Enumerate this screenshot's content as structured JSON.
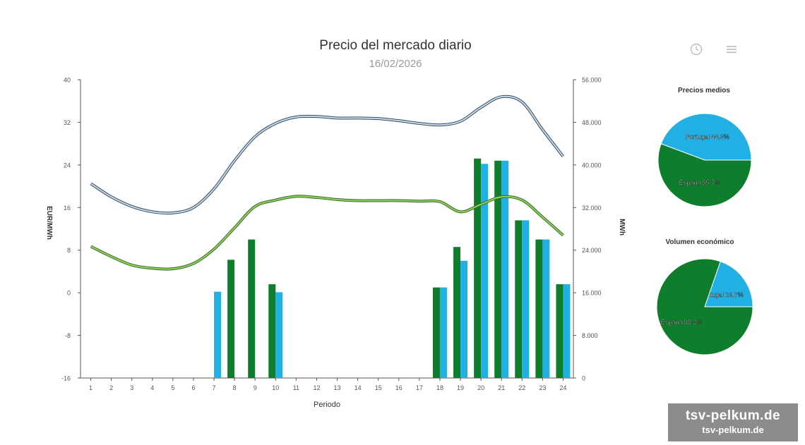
{
  "header": {
    "title": "Precio del mercado diario",
    "subtitle": "16/02/2026"
  },
  "toolbar": {
    "reset_icon": "clock-reset-icon",
    "menu_icon": "hamburger-menu-icon"
  },
  "colors": {
    "portugal": "#21b0e3",
    "espana": "#0e7d2c",
    "portugal_price_line": "#c4dcea",
    "espana_price_line": "#8fd15c",
    "axis": "#555555",
    "line_outline": "#3a4a60",
    "green_outline": "#3a6a2a"
  },
  "chart_data": [
    {
      "type": "bar+line",
      "title": "Precio del mercado diario",
      "subtitle": "16/02/2026",
      "xlabel": "Periodo",
      "ylabel_left": "EUR/MWh",
      "ylabel_right": "MWh",
      "x": [
        1,
        2,
        3,
        4,
        5,
        6,
        7,
        8,
        9,
        10,
        11,
        12,
        13,
        14,
        15,
        16,
        17,
        18,
        19,
        20,
        21,
        22,
        23,
        24
      ],
      "ylim_left": [
        -16,
        40
      ],
      "yticks_left": [
        "40",
        "32",
        "24",
        "16",
        "8",
        "0",
        "-8",
        "-16"
      ],
      "ylim_right": [
        0,
        56000
      ],
      "yticks_right": [
        "56.000",
        "48.000",
        "40.000",
        "32.000",
        "24.000",
        "16.000",
        "8.000",
        "0"
      ],
      "grid": false,
      "line_series": [
        {
          "values": [
            20.5,
            18,
            16.2,
            15.2,
            15,
            16,
            19.5,
            24.8,
            29.3,
            31.8,
            33,
            33.1,
            32.8,
            32.8,
            32.7,
            32.3,
            31.8,
            31.5,
            32.2,
            34.8,
            36.8,
            35.8,
            30.6,
            25.6
          ]
        },
        {
          "values": [
            8.7,
            6.8,
            5.2,
            4.6,
            4.5,
            5.5,
            8.2,
            12.2,
            16.2,
            17.4,
            18.1,
            17.9,
            17.5,
            17.3,
            17.3,
            17.3,
            17.2,
            17.1,
            15.2,
            16.6,
            18,
            17.4,
            14.2,
            10.8
          ]
        }
      ],
      "bar_series": [
        {
          "values": [
            null,
            null,
            null,
            null,
            null,
            null,
            null,
            22200,
            26000,
            17600,
            null,
            null,
            null,
            null,
            null,
            null,
            null,
            17000,
            24600,
            41200,
            40800,
            29600,
            26000,
            17600
          ]
        },
        {
          "values": [
            null,
            null,
            null,
            null,
            null,
            null,
            16200,
            null,
            null,
            16100,
            null,
            null,
            null,
            null,
            null,
            null,
            null,
            17000,
            22000,
            40200,
            40800,
            29600,
            26000,
            17600
          ]
        }
      ]
    },
    {
      "type": "pie",
      "title": "Precios medios",
      "slices": [
        {
          "label": "Portugal",
          "percent_label": "44.3%",
          "value": 44.3
        },
        {
          "label": "España",
          "percent_label": "55.7%",
          "value": 55.7
        }
      ]
    },
    {
      "type": "pie",
      "title": "Volumen económico",
      "slices": [
        {
          "label": "Portugal",
          "percent_label": "19.7%",
          "value": 19.7
        },
        {
          "label": "España",
          "percent_label": "80.3%",
          "value": 80.3
        }
      ]
    }
  ],
  "watermark": {
    "line1": "tsv-pelkum.de",
    "line2": "tsv-pelkum.de"
  }
}
